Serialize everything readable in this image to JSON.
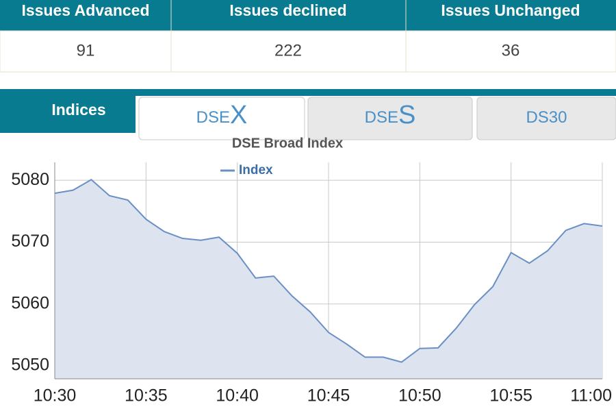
{
  "summary": {
    "headers": [
      "Issues Advanced",
      "Issues declined",
      "Issues Unchanged"
    ],
    "values": [
      "91",
      "222",
      "36"
    ]
  },
  "tabs": [
    {
      "text": "Indices"
    },
    {
      "text": "DSE",
      "suffix": "X"
    },
    {
      "text": "DSE",
      "suffix": "S"
    },
    {
      "text": "DS30"
    }
  ],
  "active_tab": 1,
  "chart_data": {
    "type": "area",
    "title": "DSE Broad Index",
    "x": [
      "10:30",
      "10:31",
      "10:32",
      "10:33",
      "10:34",
      "10:35",
      "10:36",
      "10:37",
      "10:38",
      "10:39",
      "10:40",
      "10:41",
      "10:42",
      "10:43",
      "10:44",
      "10:45",
      "10:46",
      "10:47",
      "10:48",
      "10:49",
      "10:50",
      "10:51",
      "10:52",
      "10:53",
      "10:54",
      "10:55",
      "10:56",
      "10:57",
      "10:58",
      "10:59",
      "11:00"
    ],
    "series": [
      {
        "name": "Index",
        "color": "#6a8fc4",
        "values": [
          5077.9,
          5078.4,
          5080.1,
          5077.5,
          5076.8,
          5073.7,
          5071.7,
          5070.6,
          5070.3,
          5070.8,
          5068.2,
          5064.2,
          5064.5,
          5061.3,
          5058.7,
          5055.4,
          5053.5,
          5051.4,
          5051.4,
          5050.6,
          5052.8,
          5052.9,
          5056.1,
          5059.9,
          5062.8,
          5068.3,
          5066.6,
          5068.6,
          5071.9,
          5073.0,
          5072.6
        ]
      }
    ],
    "xlim": [
      "10:30",
      "11:00"
    ],
    "xticks": [
      "10:30",
      "10:35",
      "10:40",
      "10:45",
      "10:50",
      "10:55",
      "11:00"
    ],
    "ylim": [
      5047.9,
      5082.9
    ],
    "yticks": [
      5050,
      5060,
      5070,
      5080
    ],
    "grid": true,
    "legend": "top"
  }
}
